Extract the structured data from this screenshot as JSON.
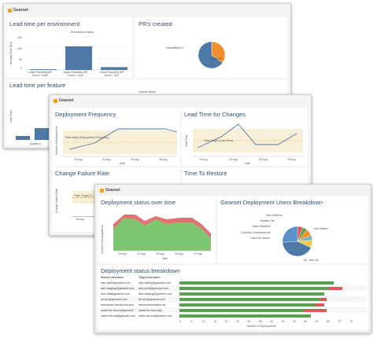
{
  "dash1": {
    "brand": "Gearset",
    "lead_env": {
      "title": "Lead time per environment",
      "col_header": "Environment Name",
      "ylabel": "Average Time (Hrs)",
      "ticks": [
        "150",
        "100",
        "50",
        "0"
      ],
      "cats": [
        "Julian Reporting API Demo - hotfix",
        "Julian Reporting API Demo - main",
        "Julian Reporting API Demo - UAT"
      ],
      "values": [
        3,
        100,
        12
      ]
    },
    "prs": {
      "title": "PR's created",
      "labels": [
        "SamWilliamsTI",
        "jwalker99"
      ],
      "values": [
        35,
        65
      ]
    },
    "lead_feature": {
      "title": "Lead time per feature",
      "col_header": "Feature Name",
      "ylabel": "Lead Time",
      "cat": "update-in..."
    }
  },
  "dash2": {
    "brand": "Gearset",
    "freq": {
      "title": "Deployment Frequency",
      "ylabel": "Number of Deployments",
      "target": "Team target (Deployment Frequency)",
      "xlabel": "Date",
      "dates": [
        "19 Aug",
        "22 Aug",
        "25 Aug",
        "28 Aug"
      ]
    },
    "lead_changes": {
      "title": "Lead Time for Changes",
      "ylabel": "Lead Time",
      "target": "Team target (Lead Time)",
      "xlabel": "Date",
      "dates": [
        "19 Aug",
        "22 Aug",
        "25 Aug",
        "28 Aug"
      ]
    },
    "cfr": {
      "title": "Change Failure Rate",
      "ylabel": "Change Failure Rate",
      "target": "Team Target (C...",
      "dates": [
        "19 Aug"
      ]
    },
    "ttr": {
      "title": "Time To Restore"
    }
  },
  "dash3": {
    "brand": "Gearset",
    "status_time": {
      "title": "Deployment status over time",
      "ylabel": "Number of Deployments",
      "xlabel": "Date",
      "dates": [
        "19 Aug",
        "21 Aug",
        "23 Aug",
        "25 Aug",
        "27 Aug"
      ]
    },
    "users": {
      "title": "Gearset Deployment Users Breakdown",
      "labels": [
        "Sam Williams",
        "Mattias Carl",
        "Julian Wiseford",
        "Charlotte Christopherson",
        "Catherine Bacon",
        "Alex Walker",
        "Ali - test Dev"
      ],
      "values": [
        6,
        5,
        7,
        6,
        8,
        42,
        26
      ],
      "colors": [
        "#e15759",
        "#59a14f",
        "#f28e2b",
        "#76b7b2",
        "#edc948",
        "#4e79a7",
        "#5b8fc9"
      ]
    },
    "breakdown": {
      "title": "Deployment status breakdown",
      "col_source": "Source Username",
      "col_target": "Target Username",
      "rows": [
        {
          "source": "alex.devl@gearset.com",
          "target": "alex.nearly@gearset.com",
          "green": 68,
          "red": 0
        },
        {
          "source": "alex.staging@gearset.com",
          "target": "alex.prod@gearset.com",
          "green": 66,
          "red": 6
        },
        {
          "source": "alex.trial@gearset.com",
          "target": "alex.staging@gearset.com",
          "green": 64,
          "red": 0
        },
        {
          "source": "ali.dev@gearset.com",
          "target": "ali.dev@gearset.com",
          "green": 62,
          "red": 3
        },
        {
          "source": "alidoesnts.info@force.com",
          "target": "Alexandermadden.se...",
          "green": 60,
          "red": 4
        },
        {
          "source": "catherine.bacon@gearset...",
          "target": "catherine.bacon@...",
          "green": 55,
          "red": 10
        },
        {
          "source": "catherine.uat@gearset.com",
          "target": "cathe.bacon@gearset.com",
          "green": 58,
          "red": 0
        }
      ],
      "ticks": [
        "0",
        "5",
        "10",
        "15",
        "20",
        "25",
        "30",
        "35",
        "40",
        "45",
        "50",
        "55",
        "60",
        "65",
        "70",
        "75"
      ],
      "xlabel": "Number of Deployments"
    }
  }
}
